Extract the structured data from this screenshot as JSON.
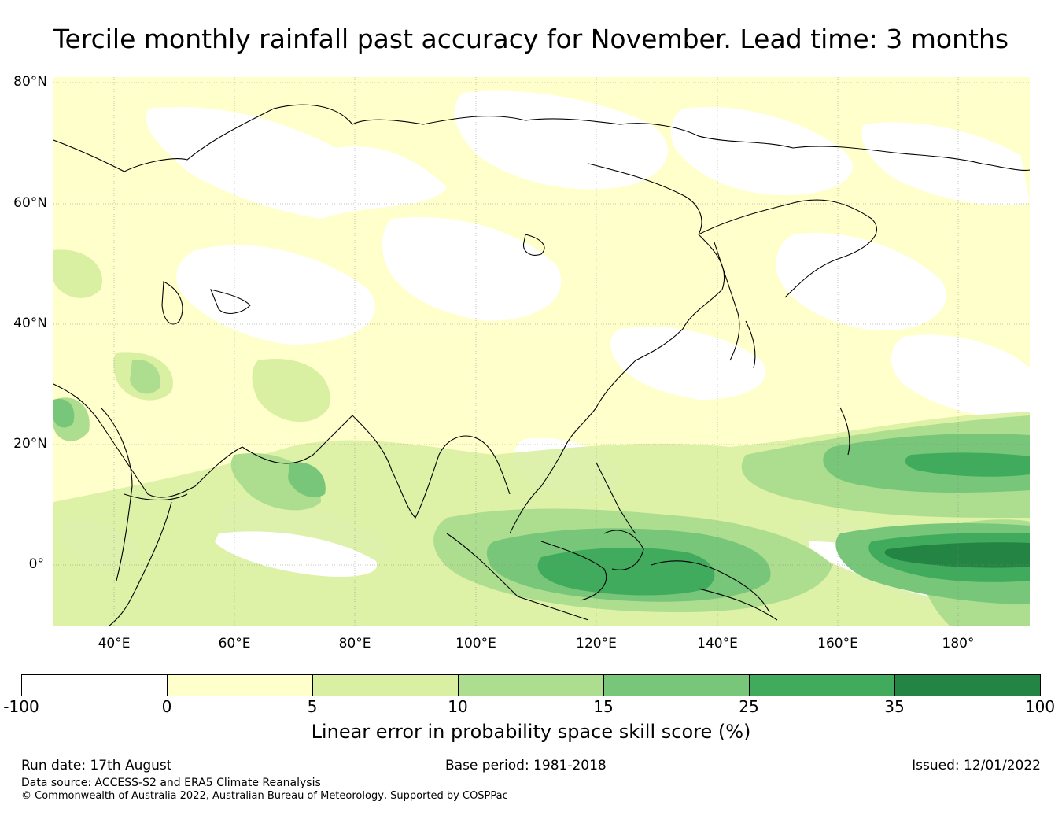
{
  "title": "Tercile monthly rainfall past accuracy for November. Lead time: 3 months",
  "map": {
    "lat_labels": [
      "80°N",
      "60°N",
      "40°N",
      "20°N",
      "0°"
    ],
    "lon_labels": [
      "40°E",
      "60°E",
      "80°E",
      "100°E",
      "120°E",
      "140°E",
      "160°E",
      "180°"
    ],
    "colors": {
      "band_0_5": "#ffffcc",
      "band_5_10": "#d9f0a3",
      "band_10_15": "#addd8e",
      "band_15_25": "#78c679",
      "band_25_35": "#41ab5d",
      "band_35_100": "#238443",
      "coastline": "#000000",
      "gridline": "#888888"
    }
  },
  "colorbar": {
    "ticks": [
      "-100",
      "0",
      "5",
      "10",
      "15",
      "25",
      "35",
      "100"
    ],
    "colors": [
      "#ffffff",
      "#ffffcc",
      "#d9f0a3",
      "#addd8e",
      "#78c679",
      "#41ab5d",
      "#238443"
    ],
    "label": "Linear error in probability space skill score (%)"
  },
  "footer": {
    "run_date": "Run date: 17th August",
    "base_period": "Base period: 1981-2018",
    "issued": "Issued: 12/01/2022",
    "data_source": "Data source: ACCESS-S2 and ERA5 Climate Reanalysis",
    "copyright": "© Commonwealth of Australia 2022, Australian Bureau of Meteorology, Supported by COSPPac"
  }
}
